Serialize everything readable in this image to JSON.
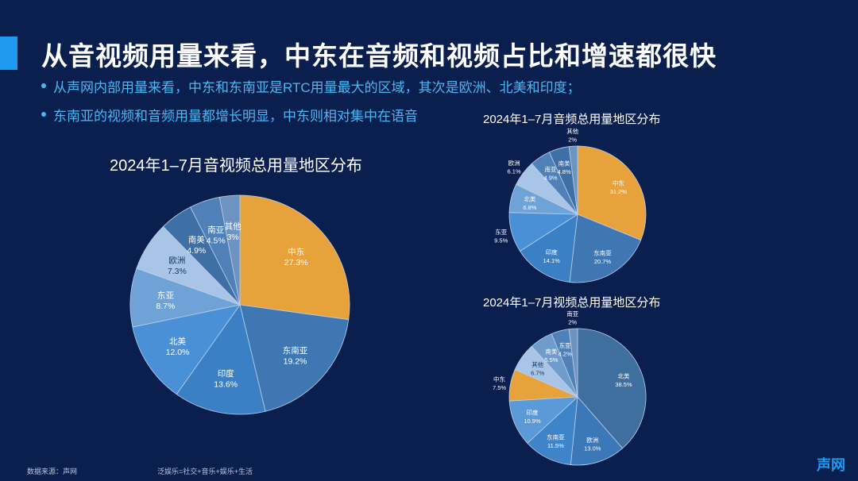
{
  "page": {
    "title": "从音视频用量来看，中东在音频和视频占比和增速都很快",
    "bullets": [
      "从声网内部用量来看，中东和东南亚是RTC用量最大的区域，其次是欧洲、北美和印度；",
      "东南亚的视频和音频用量都增长明显，中东则相对集中在语音"
    ],
    "source_note": "数据来源：声网",
    "definition_note": "泛娱乐=社交+音乐+娱乐+生活",
    "brand": "声网"
  },
  "colors": {
    "background": "#0b1f4f",
    "accent": "#1e9bf0",
    "bullet_text": "#48b8f5",
    "highlight_slice": "#e8a23c"
  },
  "chart_data": [
    {
      "type": "pie",
      "title": "2024年1–7月音视频总用量地区分布",
      "slices": [
        {
          "label": "中东",
          "value": 27.3,
          "display": "27.3%",
          "color": "#e8a23c"
        },
        {
          "label": "东南亚",
          "value": 19.2,
          "display": "19.2%",
          "color": "#3f77b2"
        },
        {
          "label": "印度",
          "value": 13.6,
          "display": "13.6%",
          "color": "#3b7fc4"
        },
        {
          "label": "北美",
          "value": 12.0,
          "display": "12.0%",
          "color": "#4a90d6"
        },
        {
          "label": "东亚",
          "value": 8.7,
          "display": "8.7%",
          "color": "#6fa3d8"
        },
        {
          "label": "欧洲",
          "value": 7.3,
          "display": "7.3%",
          "color": "#a8c4e6"
        },
        {
          "label": "南美",
          "value": 4.9,
          "display": "4.9%",
          "color": "#3e6fa5"
        },
        {
          "label": "南亚",
          "value": 4.5,
          "display": "4.5%",
          "color": "#4f81b8"
        },
        {
          "label": "其他",
          "value": 3,
          "display": "3%",
          "color": "#6d93c0"
        }
      ]
    },
    {
      "type": "pie",
      "title": "2024年1–7月音频总用量地区分布",
      "slices": [
        {
          "label": "中东",
          "value": 31.2,
          "display": "31.2%",
          "color": "#e8a23c"
        },
        {
          "label": "东南亚",
          "value": 20.7,
          "display": "20.7%",
          "color": "#3f77b2"
        },
        {
          "label": "印度",
          "value": 14.1,
          "display": "14.1%",
          "color": "#3b7fc4"
        },
        {
          "label": "东亚",
          "value": 9.5,
          "display": "9.5%",
          "color": "#4a90d6"
        },
        {
          "label": "北美",
          "value": 6.8,
          "display": "6.8%",
          "color": "#6fa3d8"
        },
        {
          "label": "欧洲",
          "value": 6.1,
          "display": "6.1%",
          "color": "#a8c4e6"
        },
        {
          "label": "南亚",
          "value": 4.9,
          "display": "4.9%",
          "color": "#4f81b8"
        },
        {
          "label": "南美",
          "value": 4.8,
          "display": "4.8%",
          "color": "#3e6fa5"
        },
        {
          "label": "其他",
          "value": 2,
          "display": "2%",
          "color": "#6d93c0"
        }
      ]
    },
    {
      "type": "pie",
      "title": "2024年1–7月视频总用量地区分布",
      "slices": [
        {
          "label": "北美",
          "value": 38.5,
          "display": "38.5%",
          "color": "#3f6f9e"
        },
        {
          "label": "欧洲",
          "value": 13.0,
          "display": "13.0%",
          "color": "#3b78b8"
        },
        {
          "label": "东南亚",
          "value": 11.5,
          "display": "11.5%",
          "color": "#3f84c8"
        },
        {
          "label": "印度",
          "value": 10.9,
          "display": "10.9%",
          "color": "#5b9ad9"
        },
        {
          "label": "中东",
          "value": 7.5,
          "display": "7.5%",
          "color": "#e8a23c"
        },
        {
          "label": "其他",
          "value": 6.7,
          "display": "6.7%",
          "color": "#a8c4e6"
        },
        {
          "label": "南美",
          "value": 5.5,
          "display": "5.5%",
          "color": "#6f9ccc"
        },
        {
          "label": "东亚",
          "value": 4.2,
          "display": "4.2%",
          "color": "#4f81b8"
        },
        {
          "label": "南亚",
          "value": 2,
          "display": "2%",
          "color": "#6d93c0"
        }
      ]
    }
  ]
}
